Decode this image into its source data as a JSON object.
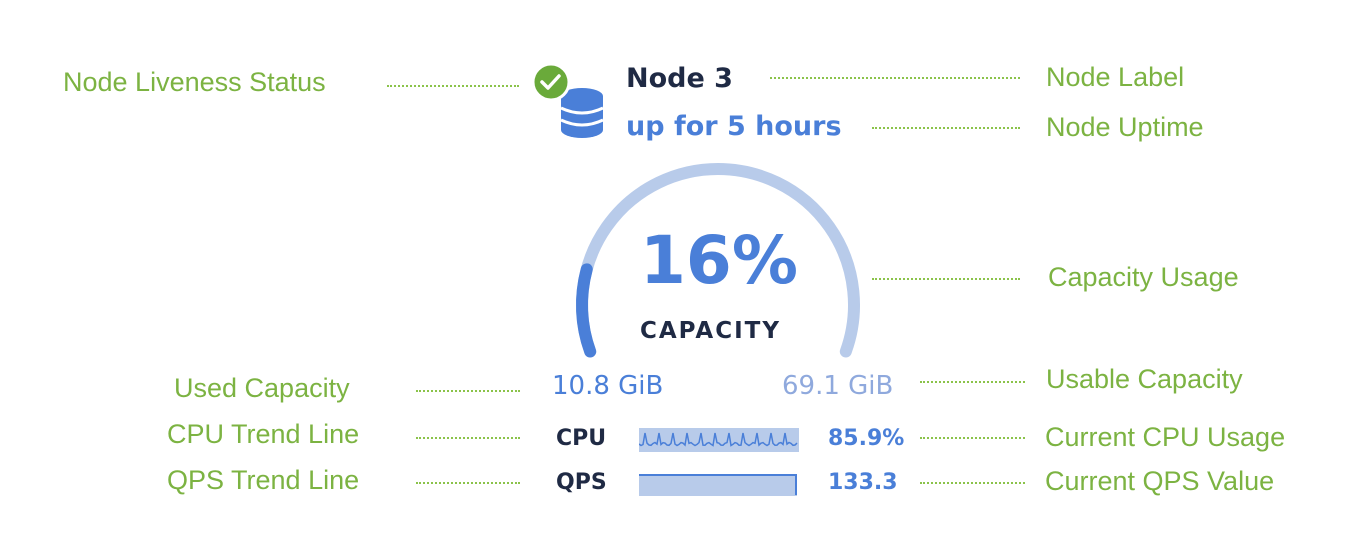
{
  "node": {
    "liveness_icon": "check-circle-icon",
    "node_icon": "database-icon",
    "label": "Node 3",
    "uptime": "up for 5 hours",
    "capacity_percent": 16,
    "capacity_percent_text": "16%",
    "capacity_label": "CAPACITY",
    "used_capacity": "10.8 GiB",
    "usable_capacity": "69.1 GiB",
    "cpu_label": "CPU",
    "cpu_value": "85.9%",
    "qps_label": "QPS",
    "qps_value": "133.3"
  },
  "annotations": {
    "liveness": "Node Liveness Status",
    "label": "Node Label",
    "uptime": "Node Uptime",
    "capacity": "Capacity Usage",
    "used": "Used Capacity",
    "usable": "Usable Capacity",
    "cpu_trend": "CPU Trend Line",
    "cpu_current": "Current CPU Usage",
    "qps_trend": "QPS Trend Line",
    "qps_current": "Current QPS Value"
  },
  "colors": {
    "accent": "#4a7fd8",
    "track": "#b8cbea",
    "status_ok": "#6aaa3a",
    "annotation": "#7cb342"
  }
}
